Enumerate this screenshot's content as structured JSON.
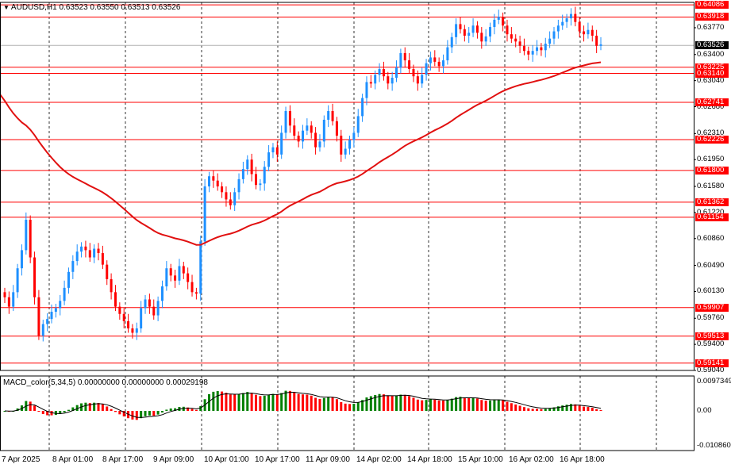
{
  "header": {
    "symbol_timeframe": "AUDUSD,H1",
    "ohlc": "0.63523 0.63550 0.63513 0.63526"
  },
  "macd_header": "MACD_color(5,34,5) 0.00000000 0.00000000 0.00029198",
  "colors": {
    "bull": "#1e90ff",
    "bear": "#ff0000",
    "level": "#ff0000",
    "ma": "#e11010",
    "macd_pos": "#008000",
    "macd_neg": "#ff0000",
    "grid": "#000000"
  },
  "price_axis": {
    "min": 0.5904,
    "max": 0.6412,
    "ticks": [
      "0.63770",
      "0.63400",
      "0.63040",
      "0.62680",
      "0.62310",
      "0.61950",
      "0.61580",
      "0.61220",
      "0.60860",
      "0.60490",
      "0.60130",
      "0.59760",
      "0.59400",
      "0.59040"
    ]
  },
  "levels": [
    "0.64086",
    "0.63918",
    "0.63225",
    "0.63140",
    "0.62741",
    "0.62226",
    "0.61800",
    "0.61362",
    "0.61154",
    "0.59907",
    "0.59513",
    "0.59141"
  ],
  "current_price": "0.63526",
  "macd_axis": {
    "top": "0.0097349",
    "zero": "0.00",
    "bottom": "-0.0108600"
  },
  "time_axis": [
    "7 Apr 2025",
    "8 Apr 01:00",
    "8 Apr 17:00",
    "9 Apr 09:00",
    "10 Apr 01:00",
    "10 Apr 17:00",
    "11 Apr 09:00",
    "14 Apr 02:00",
    "14 Apr 18:00",
    "15 Apr 10:00",
    "16 Apr 02:00",
    "16 Apr 18:00"
  ],
  "chart_data": {
    "type": "candlestick",
    "closes": [
      0.6005,
      0.5992,
      0.6012,
      0.6045,
      0.607,
      0.6112,
      0.606,
      0.6005,
      0.5952,
      0.5968,
      0.5975,
      0.5985,
      0.599,
      0.6,
      0.6018,
      0.604,
      0.6055,
      0.6068,
      0.6075,
      0.607,
      0.606,
      0.6072,
      0.6066,
      0.605,
      0.603,
      0.6012,
      0.5992,
      0.5982,
      0.5972,
      0.5962,
      0.5956,
      0.5962,
      0.599,
      0.6002,
      0.5992,
      0.598,
      0.6,
      0.602,
      0.6045,
      0.6035,
      0.6028,
      0.6048,
      0.6038,
      0.6026,
      0.6012,
      0.601,
      0.6082,
      0.6158,
      0.6172,
      0.6166,
      0.6158,
      0.615,
      0.614,
      0.6132,
      0.615,
      0.6168,
      0.6182,
      0.6195,
      0.6175,
      0.616,
      0.6162,
      0.6185,
      0.6205,
      0.6212,
      0.6202,
      0.6232,
      0.6262,
      0.6242,
      0.6228,
      0.622,
      0.6235,
      0.6242,
      0.6232,
      0.6212,
      0.622,
      0.625,
      0.6262,
      0.6248,
      0.6228,
      0.6202,
      0.621,
      0.6222,
      0.6232,
      0.6255,
      0.628,
      0.6302,
      0.63,
      0.6312,
      0.632,
      0.631,
      0.63,
      0.6308,
      0.6322,
      0.6342,
      0.6332,
      0.632,
      0.631,
      0.63,
      0.6312,
      0.6328,
      0.6336,
      0.633,
      0.6324,
      0.6332,
      0.635,
      0.6364,
      0.6382,
      0.6375,
      0.6366,
      0.637,
      0.638,
      0.637,
      0.6358,
      0.6365,
      0.6378,
      0.6388,
      0.6392,
      0.638,
      0.6368,
      0.6362,
      0.6358,
      0.6352,
      0.6345,
      0.634,
      0.6345,
      0.635,
      0.6346,
      0.6355,
      0.6362,
      0.6372,
      0.638,
      0.6385,
      0.639,
      0.6396,
      0.6385,
      0.6372,
      0.6368,
      0.6374,
      0.6366,
      0.6352,
      0.6354
    ]
  }
}
